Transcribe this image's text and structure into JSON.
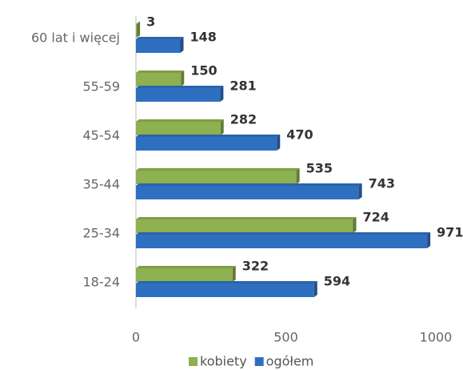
{
  "chart_data": {
    "type": "barh",
    "categories": [
      "60 lat i więcej",
      "55-59",
      "45-54",
      "35-44",
      "25-34",
      "18-24"
    ],
    "series": [
      {
        "name": "kobiety",
        "color": "#8db050",
        "values": [
          3,
          150,
          282,
          535,
          724,
          322
        ]
      },
      {
        "name": "ogółem",
        "color": "#2f6fc0",
        "values": [
          148,
          281,
          470,
          743,
          971,
          594
        ]
      }
    ],
    "xlim": [
      0,
      1000
    ],
    "xticks": [
      0,
      500,
      1000
    ],
    "legend": "bottom"
  }
}
